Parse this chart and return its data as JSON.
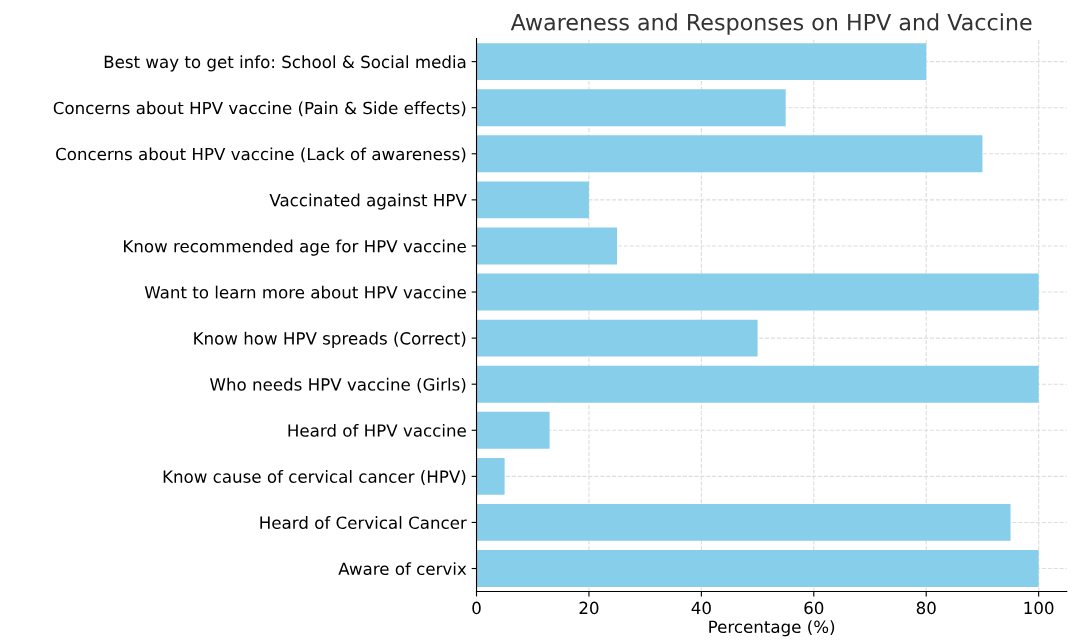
{
  "chart_data": {
    "type": "bar",
    "orientation": "horizontal",
    "title": "Awareness and Responses on HPV and Vaccine",
    "xlabel": "Percentage (%)",
    "categories": [
      "Best way to get info: School & Social media",
      "Concerns about HPV vaccine (Pain & Side effects)",
      "Concerns about HPV vaccine (Lack of awareness)",
      "Vaccinated against HPV",
      "Know recommended age for HPV vaccine",
      "Want to learn more about HPV vaccine",
      "Know how HPV spreads (Correct)",
      "Who needs HPV vaccine (Girls)",
      "Heard of HPV vaccine",
      "Know cause of cervical cancer (HPV)",
      "Heard of Cervical Cancer",
      "Aware of cervix"
    ],
    "values": [
      80,
      55,
      90,
      20,
      25,
      100,
      50,
      100,
      13,
      5,
      95,
      100
    ],
    "color": "#87ceeb",
    "xlim": [
      0,
      105
    ],
    "xticks": [
      0,
      20,
      40,
      60,
      80,
      100
    ],
    "grid": true
  }
}
